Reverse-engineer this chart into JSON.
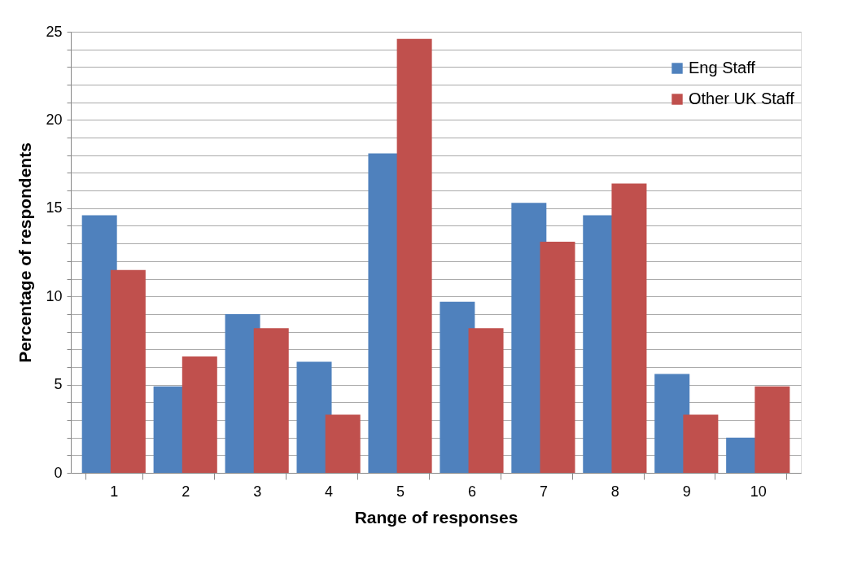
{
  "chart_data": {
    "type": "bar",
    "xlabel": "Range of responses",
    "ylabel": "Percentage of respondents",
    "categories": [
      "1",
      "2",
      "3",
      "4",
      "5",
      "6",
      "7",
      "8",
      "9",
      "10"
    ],
    "series": [
      {
        "name": "Eng Staff",
        "color": "#4f81bd",
        "values": [
          14.6,
          4.9,
          9.0,
          6.3,
          18.1,
          9.7,
          15.3,
          14.6,
          5.6,
          2.0
        ]
      },
      {
        "name": "Other UK Staff",
        "color": "#c0504d",
        "values": [
          11.5,
          6.6,
          8.2,
          3.3,
          24.6,
          8.2,
          13.1,
          16.4,
          3.3,
          4.9
        ]
      }
    ],
    "ylim": [
      0,
      25
    ],
    "yticks": [
      0,
      {
        "value": 1,
        "label": null
      },
      {
        "value": 2,
        "label": null
      },
      {
        "value": 3,
        "label": null
      },
      {
        "value": 4,
        "label": null
      },
      5,
      {
        "value": 6,
        "label": null
      },
      {
        "value": 7,
        "label": null
      },
      {
        "value": 8,
        "label": null
      },
      {
        "value": 9,
        "label": null
      },
      10,
      {
        "value": 11,
        "label": null
      },
      {
        "value": 12,
        "label": null
      },
      {
        "value": 13,
        "label": null
      },
      {
        "value": 14,
        "label": null
      },
      15,
      {
        "value": 16,
        "label": null
      },
      {
        "value": 17,
        "label": null
      },
      {
        "value": 18,
        "label": null
      },
      {
        "value": 19,
        "label": null
      },
      20,
      {
        "value": 21,
        "label": null
      },
      {
        "value": 22,
        "label": null
      },
      {
        "value": 23,
        "label": null
      },
      {
        "value": 24,
        "label": null
      },
      25
    ],
    "grid": "y",
    "legend": "top right"
  }
}
